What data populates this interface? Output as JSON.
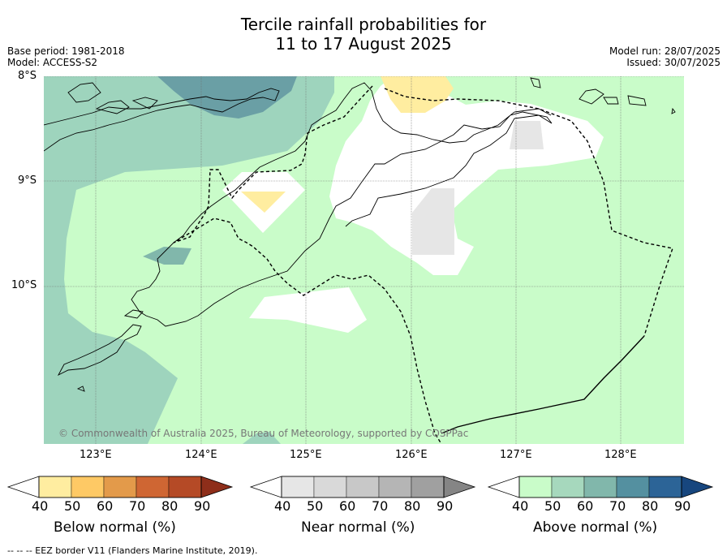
{
  "title": {
    "line1": "Tercile rainfall probabilities for",
    "line2": "11 to 17 August 2025"
  },
  "meta_left": {
    "base_period": "Base period: 1981-2018",
    "model": "Model: ACCESS-S2"
  },
  "meta_right": {
    "model_run": "Model run: 28/07/2025",
    "issued": "Issued: 30/07/2025"
  },
  "lat_labels": [
    "8°S",
    "9°S",
    "10°S"
  ],
  "lon_labels": [
    "123°E",
    "124°E",
    "125°E",
    "126°E",
    "127°E",
    "128°E"
  ],
  "copyright": "© Commonwealth of Australia 2025, Bureau of Meteorology, supported by COSPPac",
  "colorbars": [
    {
      "name": "below-normal",
      "label": "Below normal (%)",
      "ticks": [
        "40",
        "50",
        "60",
        "70",
        "80",
        "90"
      ],
      "colors": [
        "#ffffff",
        "#ffeda0",
        "#fec965",
        "#e39a4a",
        "#cf6633",
        "#b54a26",
        "#8e2e1a"
      ]
    },
    {
      "name": "near-normal",
      "label": "Near normal (%)",
      "ticks": [
        "40",
        "50",
        "60",
        "70",
        "80",
        "90"
      ],
      "colors": [
        "#ffffff",
        "#e6e6e6",
        "#d9d9d9",
        "#c8c8c8",
        "#b5b5b5",
        "#a0a0a0",
        "#858585"
      ]
    },
    {
      "name": "above-normal",
      "label": "Above normal (%)",
      "ticks": [
        "40",
        "50",
        "60",
        "70",
        "80",
        "90"
      ],
      "colors": [
        "#ffffff",
        "#c9fcc9",
        "#a6d8bd",
        "#81b7ab",
        "#5490a0",
        "#2c6497",
        "#17467e"
      ]
    }
  ],
  "footnote": "--  --  -- EEZ border V11 (Flanders Marine Institute, 2019).",
  "fill_colors": {
    "above_40_50": "#c9fcc9",
    "above_50_60": "#9ed4bd",
    "above_60_70": "#81b7ab",
    "above_70_80": "#6a9fa5",
    "near_40_50": "#e6e6e6",
    "below_40_50": "#ffeda0",
    "no_dominant": "#ffffff"
  }
}
